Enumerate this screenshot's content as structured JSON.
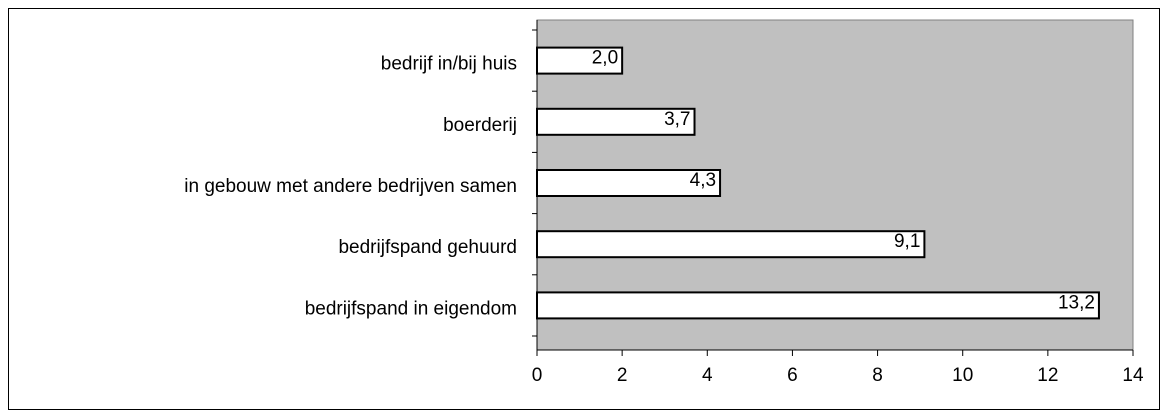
{
  "chart_data": {
    "type": "bar",
    "orientation": "horizontal",
    "categories": [
      "bedrijf in/bij huis",
      "boerderij",
      "in gebouw met andere bedrijven samen",
      "bedrijfspand gehuurd",
      "bedrijfspand in eigendom"
    ],
    "values": [
      2.0,
      3.7,
      4.3,
      9.1,
      13.2
    ],
    "value_labels": [
      "2,0",
      "3,7",
      "4,3",
      "9,1",
      "13,2"
    ],
    "color": "#ffffff",
    "plot_background": "#c0c0c0",
    "xlim": [
      0,
      14
    ],
    "xticks": [
      0,
      2,
      4,
      6,
      8,
      10,
      12,
      14
    ],
    "grid": false
  }
}
